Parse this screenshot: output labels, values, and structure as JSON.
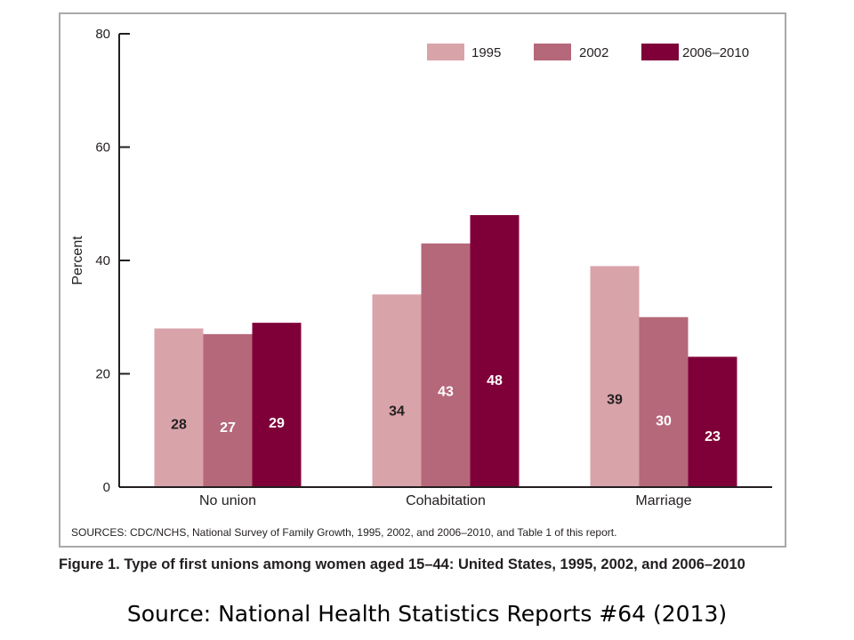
{
  "chart_data": {
    "type": "bar",
    "ylabel": "Percent",
    "ylim": [
      0,
      80
    ],
    "yticks": [
      0,
      20,
      40,
      60,
      80
    ],
    "categories": [
      "No union",
      "Cohabitation",
      "Marriage"
    ],
    "series": [
      {
        "name": "1995",
        "values": [
          28,
          34,
          39
        ],
        "data_labels": [
          "28",
          "34",
          "39"
        ],
        "color": "#d9a3aa",
        "label_color": "#231f20"
      },
      {
        "name": "2002",
        "values": [
          27,
          43,
          30
        ],
        "data_labels": [
          "27",
          "43",
          "30"
        ],
        "color": "#b5687a",
        "label_color": "#ffffff"
      },
      {
        "name": "2006–2010",
        "values": [
          29,
          48,
          23
        ],
        "data_labels": [
          "29",
          "48",
          "23"
        ],
        "color": "#7f0038",
        "label_color": "#ffffff"
      }
    ],
    "legend_position": "top-right",
    "grid": false
  },
  "note": "SOURCES: CDC/NCHS, National Survey of Family Growth, 1995, 2002, and 2006–2010, and Table 1 of this report.",
  "caption": "Figure 1. Type of first unions among women aged 15–44: United States, 1995, 2002, and 2006–2010",
  "source": "Source: National Health Statistics Reports #64 (2013)"
}
